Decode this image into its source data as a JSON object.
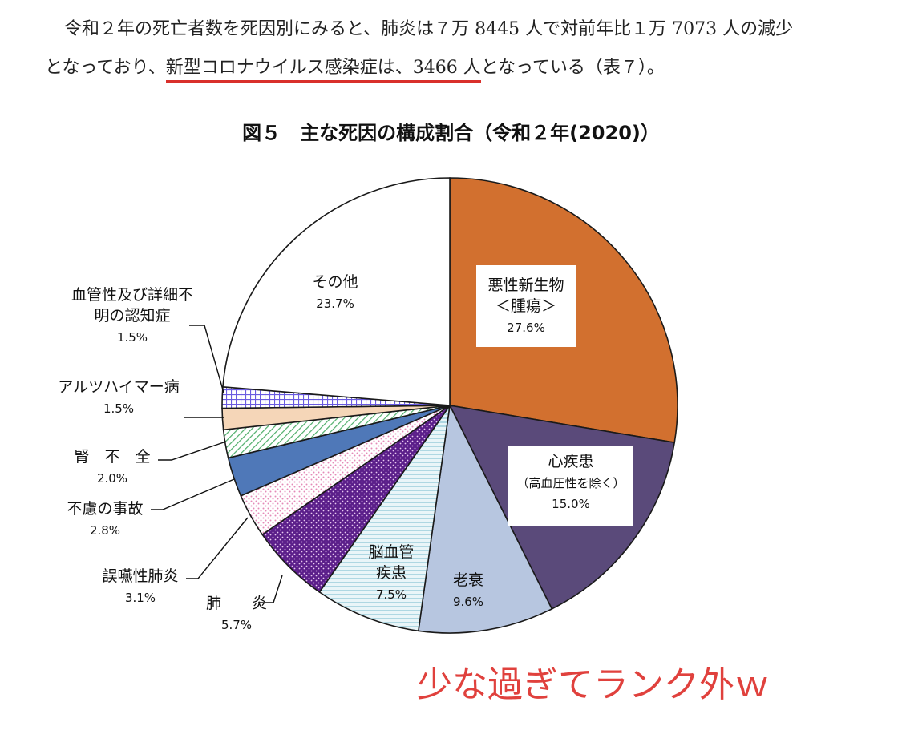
{
  "paragraph": {
    "line1": "令和２年の死亡者数を死因別にみると、肺炎は７万 8445 人で対前年比１万 7073 人の減少",
    "line2_pre": "となっており、",
    "line2_underlined": "新型コロナウイルス感染症は、3466 人",
    "line2_post": "となっている（表７）。"
  },
  "annotation": "少な過ぎてランク外ｗ",
  "chart_data": {
    "type": "pie",
    "title": "図５　主な死因の構成割合（令和２年(2020)）",
    "slices": [
      {
        "lines": [
          "悪性新生物",
          "＜腫瘍＞"
        ],
        "value": 27.6,
        "label": "27.6%",
        "color": "#d2702f",
        "pattern": "solid"
      },
      {
        "lines": [
          "心疾患",
          "（高血圧性を除く）"
        ],
        "value": 15.0,
        "label": "15.0%",
        "color": "#5a4a7a",
        "pattern": "solid"
      },
      {
        "lines": [
          "老衰"
        ],
        "value": 9.6,
        "label": "9.6%",
        "color": "#b7c6e0",
        "pattern": "solid"
      },
      {
        "lines": [
          "脳血管",
          "疾患"
        ],
        "value": 7.5,
        "label": "7.5%",
        "color": "#c8e4ec",
        "pattern": "hlines"
      },
      {
        "lines": [
          "肺　　炎"
        ],
        "value": 5.7,
        "label": "5.7%",
        "color": "#5b1f8a",
        "pattern": "dots-dark"
      },
      {
        "lines": [
          "誤嚥性肺炎"
        ],
        "value": 3.1,
        "label": "3.1%",
        "color": "#f6c3dc",
        "pattern": "dots-light"
      },
      {
        "lines": [
          "不慮の事故"
        ],
        "value": 2.8,
        "label": "2.8%",
        "color": "#4f78b8",
        "pattern": "solid"
      },
      {
        "lines": [
          "腎　不　全"
        ],
        "value": 2.0,
        "label": "2.0%",
        "color": "#6cbf7e",
        "pattern": "diag"
      },
      {
        "lines": [
          "アルツハイマー病"
        ],
        "value": 1.5,
        "label": "1.5%",
        "color": "#f5d6b8",
        "pattern": "solid"
      },
      {
        "lines": [
          "血管性及び詳細不",
          "明の認知症"
        ],
        "value": 1.5,
        "label": "1.5%",
        "color": "#7c6fe0",
        "pattern": "grid"
      },
      {
        "lines": [
          "その他"
        ],
        "value": 23.7,
        "label": "23.7%",
        "color": "#ffffff",
        "pattern": "solid"
      }
    ]
  }
}
